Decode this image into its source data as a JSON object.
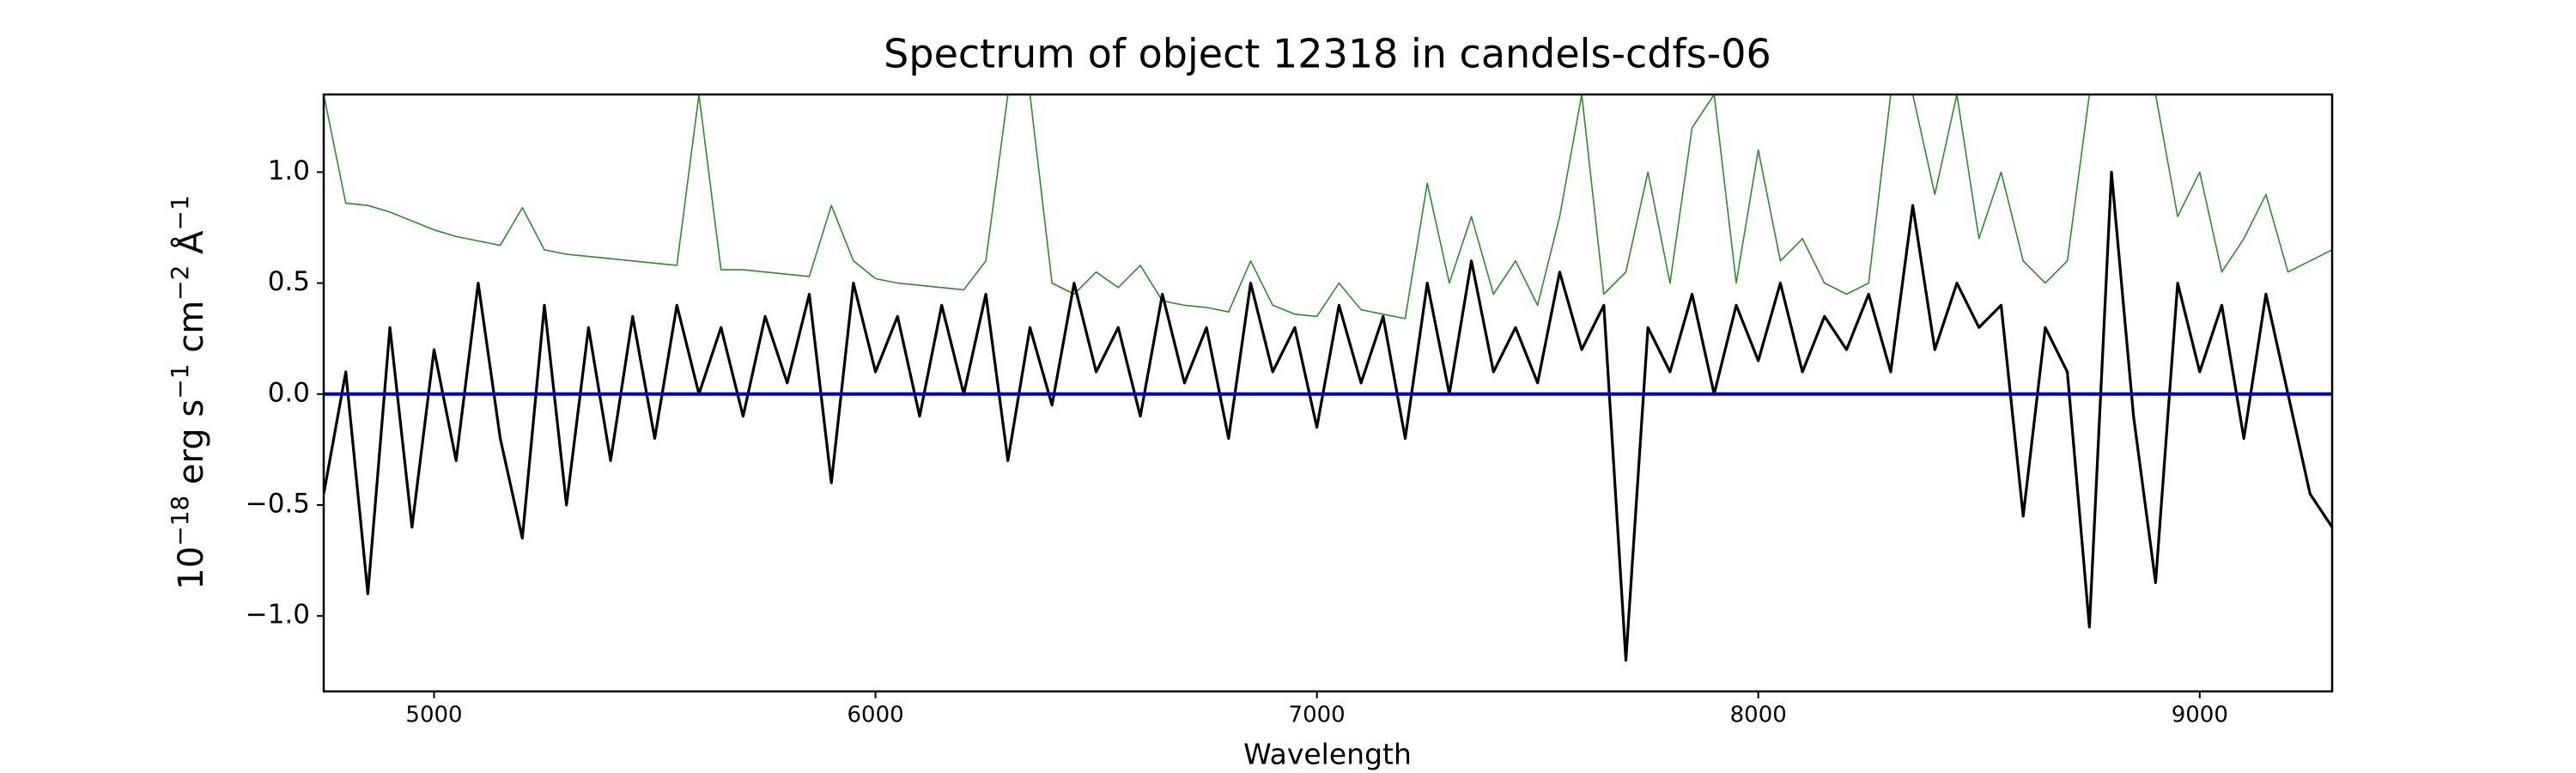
{
  "chart_data": {
    "type": "line",
    "title": "Spectrum of object 12318 in candels-cdfs-06",
    "xlabel": "Wavelength",
    "ylabel": [
      "10",
      "−18",
      " erg s",
      "−1",
      " cm",
      "−2",
      " Å",
      "−1"
    ],
    "x": [
      4750,
      4800,
      4850,
      4900,
      4950,
      5000,
      5050,
      5100,
      5150,
      5200,
      5250,
      5300,
      5350,
      5400,
      5450,
      5500,
      5550,
      5600,
      5650,
      5700,
      5750,
      5800,
      5850,
      5900,
      5950,
      6000,
      6050,
      6100,
      6150,
      6200,
      6250,
      6300,
      6350,
      6400,
      6450,
      6500,
      6550,
      6600,
      6650,
      6700,
      6750,
      6800,
      6850,
      6900,
      6950,
      7000,
      7050,
      7100,
      7150,
      7200,
      7250,
      7300,
      7350,
      7400,
      7450,
      7500,
      7550,
      7600,
      7650,
      7700,
      7750,
      7800,
      7850,
      7900,
      7950,
      8000,
      8050,
      8100,
      8150,
      8200,
      8250,
      8300,
      8350,
      8400,
      8450,
      8500,
      8550,
      8600,
      8650,
      8700,
      8750,
      8800,
      8850,
      8900,
      8950,
      9000,
      9050,
      9100,
      9150,
      9200,
      9250,
      9300
    ],
    "series": [
      {
        "color": "#2e8b2e",
        "width": 1.6,
        "values": [
          1.35,
          0.86,
          0.85,
          0.82,
          0.78,
          0.74,
          0.71,
          0.69,
          0.67,
          0.84,
          0.65,
          0.63,
          0.62,
          0.61,
          0.6,
          0.59,
          0.58,
          1.35,
          0.56,
          0.56,
          0.55,
          0.54,
          0.53,
          0.85,
          0.6,
          0.52,
          0.5,
          0.49,
          0.48,
          0.47,
          0.6,
          1.35,
          1.35,
          0.5,
          0.45,
          0.55,
          0.48,
          0.58,
          0.42,
          0.4,
          0.39,
          0.37,
          0.6,
          0.4,
          0.36,
          0.35,
          0.5,
          0.38,
          0.36,
          0.34,
          0.95,
          0.5,
          0.8,
          0.45,
          0.6,
          0.4,
          0.8,
          1.35,
          0.45,
          0.55,
          1.0,
          0.5,
          1.2,
          1.35,
          0.5,
          1.1,
          0.6,
          0.7,
          0.5,
          0.45,
          0.5,
          1.35,
          1.35,
          0.9,
          1.35,
          0.7,
          1.0,
          0.6,
          0.5,
          0.6,
          1.35,
          1.35,
          1.35,
          1.35,
          0.8,
          1.0,
          0.55,
          0.7,
          0.9,
          0.55,
          0.6,
          0.65
        ]
      },
      {
        "color": "#000000",
        "width": 3.2,
        "values": [
          -0.45,
          0.1,
          -0.9,
          0.3,
          -0.6,
          0.2,
          -0.3,
          0.5,
          -0.2,
          -0.65,
          0.4,
          -0.5,
          0.3,
          -0.3,
          0.35,
          -0.2,
          0.4,
          0.0,
          0.3,
          -0.1,
          0.35,
          0.05,
          0.45,
          -0.4,
          0.5,
          0.1,
          0.35,
          -0.1,
          0.4,
          0.0,
          0.45,
          -0.3,
          0.3,
          -0.05,
          0.5,
          0.1,
          0.3,
          -0.1,
          0.45,
          0.05,
          0.3,
          -0.2,
          0.5,
          0.1,
          0.3,
          -0.15,
          0.4,
          0.05,
          0.35,
          -0.2,
          0.5,
          0.0,
          0.6,
          0.1,
          0.3,
          0.05,
          0.55,
          0.2,
          0.4,
          -1.2,
          0.3,
          0.1,
          0.45,
          0.0,
          0.4,
          0.15,
          0.5,
          0.1,
          0.35,
          0.2,
          0.45,
          0.1,
          0.85,
          0.2,
          0.5,
          0.3,
          0.4,
          -0.55,
          0.3,
          0.1,
          -1.05,
          1.0,
          -0.1,
          -0.85,
          0.5,
          0.1,
          0.4,
          -0.2,
          0.45,
          0.0,
          -0.45,
          -0.6
        ]
      }
    ],
    "hlines": [
      {
        "value": 0,
        "color": "#0000cc"
      }
    ],
    "xlim": [
      4750,
      9300
    ],
    "xticks": [
      5000,
      6000,
      7000,
      8000,
      9000
    ],
    "ylim": [
      -1.34,
      1.35
    ],
    "yticks": [
      {
        "value": -1,
        "label": "−1.0"
      },
      {
        "value": -0.5,
        "label": "−0.5"
      },
      {
        "value": 0,
        "label": "0.0"
      },
      {
        "value": 0.5,
        "label": "0.5"
      },
      {
        "value": 1,
        "label": "1.0"
      }
    ]
  }
}
